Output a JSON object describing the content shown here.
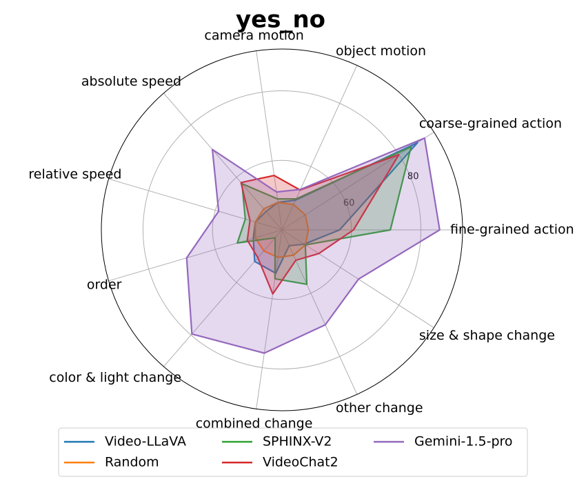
{
  "chart_data": {
    "type": "radar",
    "title": "yes_no",
    "categories": [
      "fine-grained action",
      "coarse-grained action",
      "object motion",
      "camera motion",
      "absolute speed",
      "relative speed",
      "order",
      "color & light change",
      "combined change",
      "other change",
      "size & shape change"
    ],
    "ylim": [
      40,
      92
    ],
    "yticks": [
      60,
      80
    ],
    "grid": true,
    "legend": "bottom",
    "series": [
      {
        "name": "Video-LLaVA",
        "color": "#1f77b4",
        "values": [
          56.6,
          86.4,
          49.4,
          48,
          47,
          48,
          48.6,
          52,
          52.6,
          45,
          47.6
        ]
      },
      {
        "name": "Random",
        "color": "#ff7f0e",
        "values": [
          47.6,
          48,
          48,
          48,
          48,
          48,
          48,
          48,
          48,
          48,
          48
        ]
      },
      {
        "name": "SPHINX-V2",
        "color": "#2ca02c",
        "values": [
          71.2,
          84.2,
          49.8,
          49,
          57.6,
          51,
          53.4,
          43,
          54.2,
          57.2,
          48
        ]
      },
      {
        "name": "VideoChat2",
        "color": "#d62728",
        "values": [
          60.6,
          80,
          52.6,
          55.8,
          58,
          49.6,
          50.4,
          50.6,
          58.6,
          49.6,
          52.6
        ]
      },
      {
        "name": "Gemini-1.5-pro",
        "color": "#9467bd",
        "values": [
          85.4,
          88.8,
          52.8,
          51,
          70.6,
          59,
          68.6,
          79.6,
          75.8,
          70,
          66.2
        ]
      }
    ]
  }
}
